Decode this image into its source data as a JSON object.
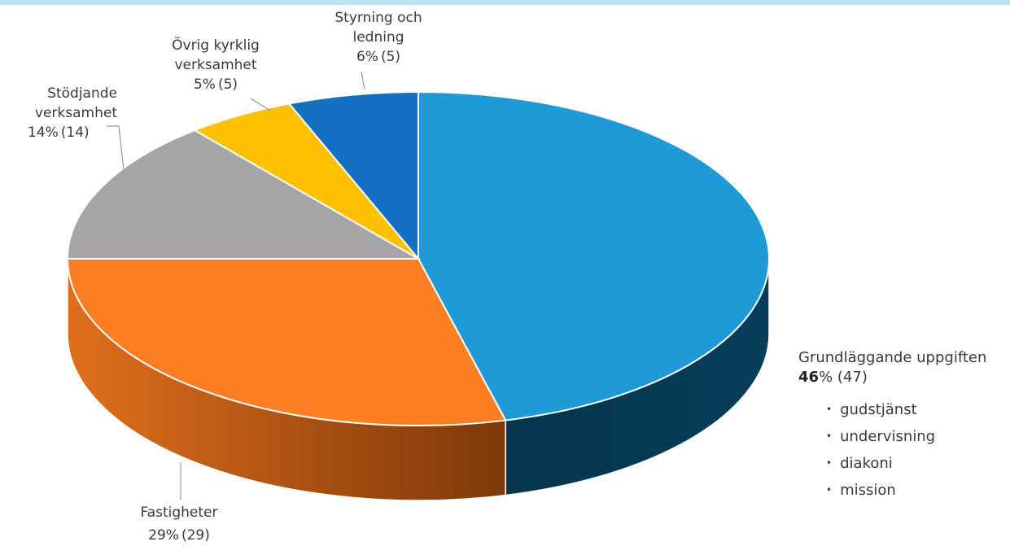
{
  "chart_data": {
    "type": "pie",
    "style": "3d",
    "slices": [
      {
        "label": "Grundläggande uppgiften",
        "percent": 46,
        "count": 47,
        "color": "#1f9ad6",
        "side": "#063b55",
        "items": [
          "gudstjänst",
          "undervisning",
          "diakoni",
          "mission"
        ]
      },
      {
        "label": "Fastigheter",
        "percent": 29,
        "count": 29,
        "color": "#fd7f23",
        "side": "#b2500f"
      },
      {
        "label": "Stödjande verksamhet",
        "label_lines": [
          "Stödjande",
          "verksamhet"
        ],
        "percent": 14,
        "count": 14,
        "color": "#a5a5a5",
        "side": "#6f6f6f"
      },
      {
        "label": "Övrig kyrklig verksamhet",
        "label_lines": [
          "Övrig kyrklig",
          "verksamhet"
        ],
        "percent": 5,
        "count": 5,
        "color": "#ffc000",
        "side": "#b88a00"
      },
      {
        "label": "Styrning och ledning",
        "label_lines": [
          "Styrning och",
          "ledning"
        ],
        "percent": 6,
        "count": 5,
        "color": "#1570c4",
        "side": "#0c4a82"
      }
    ]
  },
  "labels": {
    "grund": {
      "title": "Grundläggande uppgiften",
      "pct_num": "46",
      "pct_sign": "%",
      "count": "(47)",
      "items": [
        "gudstjänst",
        "undervisning",
        "diakoni",
        "mission"
      ]
    },
    "fast": {
      "line1": "Fastigheter",
      "pct": "29%",
      "count": "(29)"
    },
    "stod": {
      "line1": "Stödjande",
      "line2": "verksamhet",
      "pct": "14%",
      "count": "(14)"
    },
    "ovrig": {
      "line1": "Övrig kyrklig",
      "line2": "verksamhet",
      "pct": "5%",
      "count": "(5)"
    },
    "styr": {
      "line1": "Styrning och",
      "line2": "ledning",
      "pct": "6%",
      "count": "(5)"
    }
  }
}
